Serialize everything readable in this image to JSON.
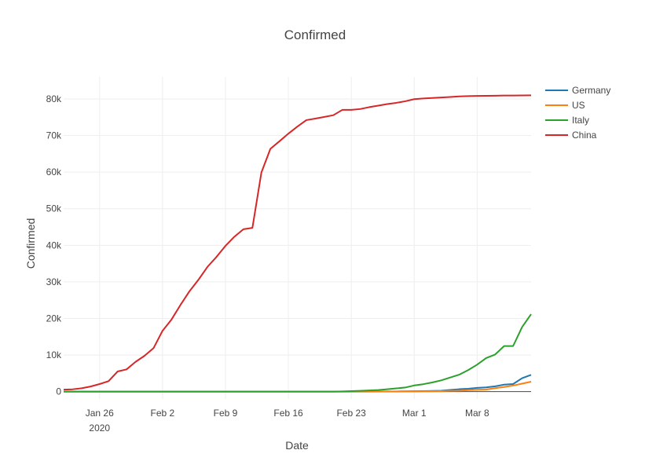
{
  "chart_data": {
    "type": "line",
    "title": "Confirmed",
    "xlabel": "Date",
    "ylabel": "Confirmed",
    "x": [
      "2020-01-22",
      "2020-01-23",
      "2020-01-24",
      "2020-01-25",
      "2020-01-26",
      "2020-01-27",
      "2020-01-28",
      "2020-01-29",
      "2020-01-30",
      "2020-01-31",
      "2020-02-01",
      "2020-02-02",
      "2020-02-03",
      "2020-02-04",
      "2020-02-05",
      "2020-02-06",
      "2020-02-07",
      "2020-02-08",
      "2020-02-09",
      "2020-02-10",
      "2020-02-11",
      "2020-02-12",
      "2020-02-13",
      "2020-02-14",
      "2020-02-15",
      "2020-02-16",
      "2020-02-17",
      "2020-02-18",
      "2020-02-19",
      "2020-02-20",
      "2020-02-21",
      "2020-02-22",
      "2020-02-23",
      "2020-02-24",
      "2020-02-25",
      "2020-02-26",
      "2020-02-27",
      "2020-02-28",
      "2020-02-29",
      "2020-03-01",
      "2020-03-02",
      "2020-03-03",
      "2020-03-04",
      "2020-03-05",
      "2020-03-06",
      "2020-03-07",
      "2020-03-08",
      "2020-03-09",
      "2020-03-10",
      "2020-03-11",
      "2020-03-12",
      "2020-03-13",
      "2020-03-14"
    ],
    "xlim": [
      "2020-01-22",
      "2020-03-14"
    ],
    "ylim": [
      -2000,
      86000
    ],
    "x_ticks": [
      {
        "date": "2020-01-26",
        "label": "Jan 26",
        "sublabel": "2020"
      },
      {
        "date": "2020-02-02",
        "label": "Feb 2",
        "sublabel": ""
      },
      {
        "date": "2020-02-09",
        "label": "Feb 9",
        "sublabel": ""
      },
      {
        "date": "2020-02-16",
        "label": "Feb 16",
        "sublabel": ""
      },
      {
        "date": "2020-02-23",
        "label": "Feb 23",
        "sublabel": ""
      },
      {
        "date": "2020-03-01",
        "label": "Mar 1",
        "sublabel": ""
      },
      {
        "date": "2020-03-08",
        "label": "Mar 8",
        "sublabel": ""
      }
    ],
    "y_ticks": [
      {
        "value": 0,
        "label": "0"
      },
      {
        "value": 10000,
        "label": "10k"
      },
      {
        "value": 20000,
        "label": "20k"
      },
      {
        "value": 30000,
        "label": "30k"
      },
      {
        "value": 40000,
        "label": "40k"
      },
      {
        "value": 50000,
        "label": "50k"
      },
      {
        "value": 60000,
        "label": "60k"
      },
      {
        "value": 70000,
        "label": "70k"
      },
      {
        "value": 80000,
        "label": "80k"
      }
    ],
    "grid": true,
    "legend_position": "top-right",
    "series": [
      {
        "name": "Germany",
        "color": "#1f77b4",
        "values": [
          0,
          0,
          0,
          0,
          1,
          4,
          4,
          4,
          5,
          8,
          10,
          12,
          12,
          12,
          12,
          13,
          13,
          14,
          14,
          16,
          16,
          16,
          16,
          16,
          16,
          16,
          16,
          16,
          16,
          16,
          16,
          16,
          16,
          16,
          17,
          27,
          46,
          48,
          79,
          130,
          159,
          196,
          262,
          482,
          670,
          799,
          1040,
          1176,
          1457,
          1908,
          2078,
          3675,
          4585
        ]
      },
      {
        "name": "US",
        "color": "#ff7f0e",
        "values": [
          1,
          1,
          2,
          2,
          5,
          5,
          5,
          5,
          5,
          7,
          8,
          8,
          11,
          11,
          11,
          11,
          11,
          11,
          11,
          11,
          12,
          12,
          13,
          13,
          13,
          13,
          13,
          13,
          13,
          13,
          15,
          15,
          15,
          51,
          51,
          57,
          58,
          60,
          68,
          74,
          98,
          118,
          149,
          217,
          262,
          402,
          518,
          583,
          959,
          1281,
          1663,
          2179,
          2727
        ]
      },
      {
        "name": "Italy",
        "color": "#2ca02c",
        "values": [
          0,
          0,
          0,
          0,
          0,
          0,
          0,
          0,
          0,
          2,
          2,
          2,
          2,
          2,
          2,
          2,
          3,
          3,
          3,
          3,
          3,
          3,
          3,
          3,
          3,
          3,
          3,
          3,
          3,
          3,
          20,
          62,
          155,
          229,
          322,
          453,
          655,
          888,
          1128,
          1694,
          2036,
          2502,
          3089,
          3858,
          4636,
          5883,
          7375,
          9172,
          10149,
          12462,
          12462,
          17660,
          21157
        ]
      },
      {
        "name": "China",
        "color": "#d62728",
        "values": [
          548,
          643,
          920,
          1406,
          2075,
          2877,
          5509,
          6087,
          8141,
          9802,
          11891,
          16630,
          19716,
          23707,
          27440,
          30587,
          34110,
          36814,
          39829,
          42354,
          44386,
          44759,
          59895,
          66358,
          68413,
          70513,
          72434,
          74211,
          74619,
          75077,
          75550,
          77001,
          77022,
          77241,
          77754,
          78166,
          78600,
          78928,
          79356,
          79932,
          80136,
          80261,
          80386,
          80537,
          80690,
          80770,
          80823,
          80860,
          80887,
          80921,
          80932,
          80945,
          80977
        ]
      }
    ]
  }
}
